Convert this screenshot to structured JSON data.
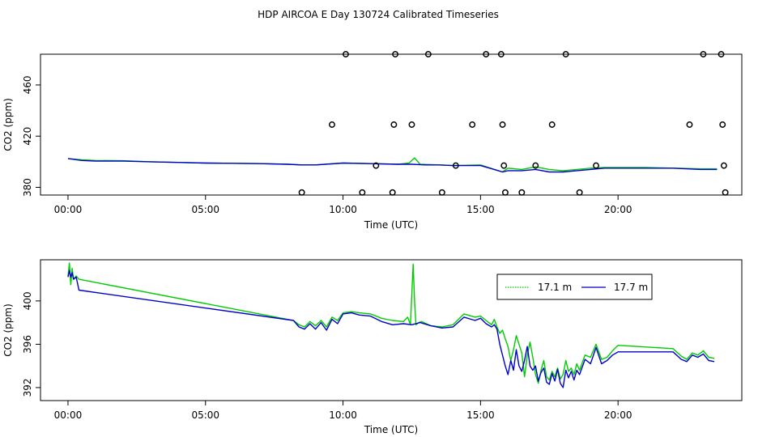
{
  "title": "HDP AIRCOA E  Day 130724  Calibrated Timeseries",
  "colors": {
    "green": "#00cc00",
    "blue": "#0000cc",
    "frame": "#000000"
  },
  "chart_data": [
    {
      "type": "scatter",
      "xlabel": "Time (UTC)",
      "ylabel": "CO2 (ppm)",
      "xlim": [
        -1.0,
        24.5
      ],
      "ylim": [
        374,
        484
      ],
      "xticks": [
        0,
        5,
        10,
        15,
        20
      ],
      "xtick_labels": [
        "00:00",
        "05:00",
        "10:00",
        "15:00",
        "20:00"
      ],
      "yticks": [
        380,
        420,
        460
      ],
      "ytick_labels": [
        "380",
        "420",
        "460"
      ],
      "series": [
        {
          "color": "#00cc00",
          "x": [
            0.0,
            0.5,
            1.0,
            2.0,
            3.0,
            4.0,
            5.0,
            6.0,
            7.0,
            8.0,
            8.5,
            9.0,
            10.0,
            11.0,
            12.0,
            12.4,
            12.6,
            12.8,
            13.5,
            14.0,
            15.0,
            15.5,
            15.8,
            16.0,
            16.5,
            17.0,
            17.5,
            18.0,
            18.5,
            19.0,
            19.5,
            20.0,
            21.0,
            22.0,
            23.0,
            23.6
          ],
          "y": [
            402.5,
            401.5,
            401.0,
            400.8,
            400.0,
            399.5,
            399.0,
            398.8,
            398.5,
            398.0,
            397.5,
            397.5,
            399.0,
            398.5,
            398.0,
            399.0,
            403.0,
            398.0,
            397.5,
            397.0,
            397.5,
            394.0,
            392.0,
            395.0,
            394.0,
            396.0,
            394.0,
            393.0,
            394.0,
            395.0,
            395.5,
            395.5,
            395.5,
            395.0,
            394.5,
            394.5
          ]
        },
        {
          "color": "#0000cc",
          "x": [
            0.0,
            0.5,
            1.0,
            2.0,
            3.0,
            4.0,
            5.0,
            6.0,
            7.0,
            8.0,
            8.5,
            9.0,
            10.0,
            11.0,
            12.0,
            12.5,
            13.0,
            13.5,
            14.0,
            15.0,
            15.5,
            15.8,
            16.0,
            16.5,
            17.0,
            17.5,
            18.0,
            18.5,
            19.0,
            19.5,
            20.0,
            21.0,
            22.0,
            23.0,
            23.6
          ],
          "y": [
            402.5,
            401.0,
            400.5,
            400.5,
            400.0,
            399.5,
            399.0,
            398.8,
            398.5,
            398.0,
            397.5,
            397.5,
            399.0,
            398.5,
            398.0,
            398.0,
            397.5,
            397.5,
            397.0,
            397.0,
            394.0,
            392.0,
            393.0,
            393.0,
            394.0,
            392.0,
            392.0,
            393.0,
            394.0,
            395.0,
            395.0,
            395.0,
            395.0,
            394.0,
            394.0
          ]
        },
        {
          "color": "#000000",
          "marker": "circle",
          "x": [
            8.5,
            9.6,
            10.1,
            10.7,
            11.2,
            11.8,
            11.85,
            11.9,
            12.5,
            13.1,
            13.6,
            14.1,
            14.7,
            15.2,
            15.75,
            15.8,
            15.85,
            15.9,
            16.5,
            17.0,
            17.6,
            18.1,
            18.6,
            19.2,
            22.6,
            23.1,
            23.75,
            23.8,
            23.85,
            23.9
          ],
          "y": [
            376,
            429,
            484,
            376,
            397,
            376,
            429,
            484,
            429,
            484,
            376,
            397,
            429,
            484,
            484,
            429,
            397,
            376,
            376,
            397,
            429,
            484,
            376,
            397,
            429,
            484,
            484,
            429,
            397,
            376
          ]
        }
      ]
    },
    {
      "type": "line",
      "xlabel": "Time (UTC)",
      "ylabel": "CO2 (ppm)",
      "xlim": [
        -1.0,
        24.5
      ],
      "ylim": [
        390.8,
        403.8
      ],
      "xticks": [
        0,
        5,
        10,
        15,
        20
      ],
      "xtick_labels": [
        "00:00",
        "05:00",
        "10:00",
        "15:00",
        "20:00"
      ],
      "yticks": [
        392,
        396,
        400
      ],
      "ytick_labels": [
        "392",
        "396",
        "400"
      ],
      "legend": "top-right",
      "series": [
        {
          "name": "17.1 m",
          "color": "#00cc00",
          "x": [
            0.0,
            0.05,
            0.1,
            0.15,
            0.2,
            0.3,
            0.4,
            8.2,
            8.4,
            8.6,
            8.8,
            9.0,
            9.2,
            9.4,
            9.6,
            9.8,
            10.0,
            10.3,
            10.6,
            11.0,
            11.4,
            11.8,
            12.2,
            12.35,
            12.45,
            12.55,
            12.6,
            12.65,
            12.75,
            12.85,
            13.2,
            13.6,
            14.0,
            14.4,
            14.8,
            15.0,
            15.2,
            15.4,
            15.5,
            15.6,
            15.7,
            15.8,
            15.9,
            16.0,
            16.1,
            16.2,
            16.3,
            16.4,
            16.5,
            16.6,
            16.7,
            16.8,
            16.9,
            17.0,
            17.1,
            17.2,
            17.3,
            17.4,
            17.5,
            17.6,
            17.7,
            17.8,
            17.9,
            18.0,
            18.1,
            18.2,
            18.3,
            18.4,
            18.5,
            18.6,
            18.8,
            19.0,
            19.2,
            19.4,
            19.6,
            19.8,
            20.0,
            22.0,
            22.3,
            22.5,
            22.7,
            22.9,
            23.1,
            23.3,
            23.5
          ],
          "y": [
            402.3,
            403.5,
            401.5,
            403.0,
            402.0,
            402.3,
            402.0,
            398.2,
            397.8,
            397.6,
            398.1,
            397.7,
            398.2,
            397.6,
            398.5,
            398.2,
            398.9,
            399.0,
            398.9,
            398.8,
            398.4,
            398.2,
            398.1,
            398.5,
            397.8,
            403.4,
            400.0,
            397.8,
            398.0,
            398.1,
            397.7,
            397.6,
            397.8,
            398.8,
            398.5,
            398.6,
            398.2,
            397.8,
            398.3,
            397.6,
            397.0,
            397.3,
            396.5,
            395.8,
            394.5,
            395.5,
            396.8,
            396.0,
            395.2,
            393.0,
            395.0,
            396.2,
            394.8,
            393.2,
            392.4,
            393.6,
            394.5,
            393.0,
            392.7,
            393.5,
            393.0,
            393.8,
            392.8,
            393.2,
            394.5,
            393.5,
            393.8,
            393.2,
            394.2,
            393.6,
            395.0,
            394.8,
            396.0,
            394.6,
            394.8,
            395.4,
            395.9,
            395.6,
            394.9,
            394.6,
            395.2,
            395.0,
            395.4,
            394.8,
            394.7
          ]
        },
        {
          "name": "17.7 m",
          "color": "#0000cc",
          "x": [
            0.0,
            0.05,
            0.1,
            0.15,
            0.2,
            0.3,
            0.4,
            8.2,
            8.4,
            8.6,
            8.8,
            9.0,
            9.2,
            9.4,
            9.6,
            9.8,
            10.0,
            10.3,
            10.6,
            11.0,
            11.4,
            11.8,
            12.2,
            12.5,
            12.8,
            13.2,
            13.6,
            14.0,
            14.4,
            14.8,
            15.0,
            15.2,
            15.4,
            15.5,
            15.6,
            15.7,
            15.8,
            15.9,
            16.0,
            16.1,
            16.2,
            16.3,
            16.4,
            16.5,
            16.6,
            16.7,
            16.8,
            16.9,
            17.0,
            17.1,
            17.2,
            17.3,
            17.4,
            17.5,
            17.6,
            17.7,
            17.8,
            17.9,
            18.0,
            18.1,
            18.2,
            18.3,
            18.4,
            18.5,
            18.6,
            18.8,
            19.0,
            19.2,
            19.4,
            19.6,
            19.8,
            20.0,
            22.0,
            22.3,
            22.5,
            22.7,
            22.9,
            23.1,
            23.3,
            23.5
          ],
          "y": [
            402.2,
            402.8,
            402.2,
            402.6,
            402.0,
            402.2,
            401.0,
            398.2,
            397.6,
            397.4,
            397.9,
            397.4,
            398.0,
            397.3,
            398.3,
            397.9,
            398.8,
            398.9,
            398.7,
            398.6,
            398.1,
            397.8,
            397.9,
            397.8,
            398.0,
            397.7,
            397.5,
            397.6,
            398.5,
            398.2,
            398.4,
            397.9,
            397.6,
            397.8,
            397.4,
            396.0,
            395.0,
            394.0,
            393.2,
            394.5,
            393.6,
            395.5,
            394.0,
            393.5,
            394.5,
            395.8,
            394.0,
            393.6,
            394.0,
            392.6,
            393.4,
            393.8,
            392.5,
            392.3,
            393.3,
            392.6,
            393.7,
            392.4,
            392.0,
            393.6,
            392.9,
            393.5,
            392.7,
            393.6,
            393.2,
            394.6,
            394.2,
            395.7,
            394.2,
            394.5,
            395.0,
            395.3,
            395.3,
            394.6,
            394.4,
            395.0,
            394.8,
            395.1,
            394.5,
            394.4
          ]
        }
      ]
    }
  ]
}
